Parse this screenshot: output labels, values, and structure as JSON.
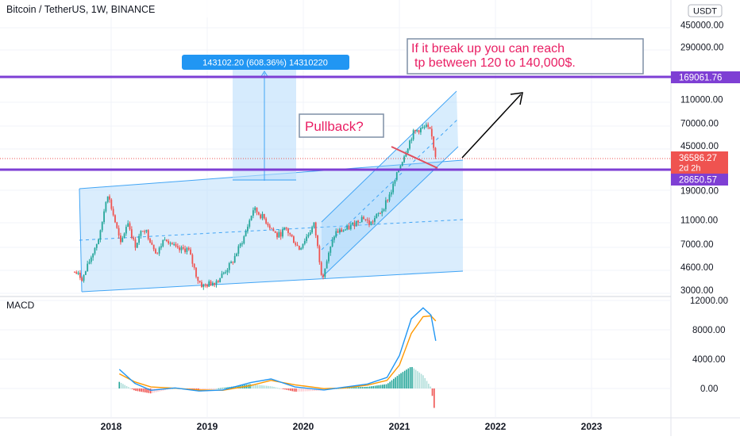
{
  "header": {
    "title": "Bitcoin / TetherUS, 1W, BINANCE",
    "currency_badge": "USDT"
  },
  "colors": {
    "up": "#26a69a",
    "down": "#ef5350",
    "channel_line": "#42a5f5",
    "channel_fill": "#bbdefb",
    "level_line": "#7e3fd4",
    "annotation_text": "#e91e63",
    "macd_line": "#2196f3",
    "signal_line": "#ff9800"
  },
  "annotations": {
    "measure_label": "143102.20 (608.36%) 14310220",
    "target_note_line1": "If it break up you can reach",
    "target_note_line2": "tp between 120 to 140,000$.",
    "pullback_note": "Pullback?"
  },
  "price_axis": {
    "labels": [
      "450000.00",
      "290000.00",
      "110000.00",
      "70000.00",
      "45000.00",
      "19000.00",
      "11000.00",
      "7000.00",
      "4600.00",
      "3000.00"
    ],
    "upper_level": "169061.76",
    "last_price": "36586.27",
    "countdown": "2d 2h",
    "lower_level": "28650.57"
  },
  "macd": {
    "title": "MACD",
    "axis_labels": [
      "12000.00",
      "8000.00",
      "4000.00",
      "0.00"
    ]
  },
  "time_axis": {
    "labels": [
      "2018",
      "2019",
      "2020",
      "2021",
      "2022",
      "2023"
    ]
  },
  "chart_data": [
    {
      "type": "candlestick",
      "title": "Bitcoin / TetherUS, 1W, BINANCE",
      "y_scale": "log",
      "ylim": [
        2500,
        600000
      ],
      "x_range": [
        "2017-08",
        "2023-12"
      ],
      "price_points": [
        [
          "2017-08-15",
          4200
        ],
        [
          "2017-09-15",
          3700
        ],
        [
          "2017-10-20",
          5800
        ],
        [
          "2017-11-20",
          8500
        ],
        [
          "2017-12-17",
          19000
        ],
        [
          "2018-01-15",
          11000
        ],
        [
          "2018-02-06",
          7000
        ],
        [
          "2018-03-05",
          11000
        ],
        [
          "2018-04-01",
          6800
        ],
        [
          "2018-05-05",
          9800
        ],
        [
          "2018-06-25",
          5900
        ],
        [
          "2018-07-25",
          8200
        ],
        [
          "2018-09-10",
          6300
        ],
        [
          "2018-10-20",
          6500
        ],
        [
          "2018-11-25",
          3700
        ],
        [
          "2018-12-15",
          3200
        ],
        [
          "2019-02-10",
          3600
        ],
        [
          "2019-04-05",
          5000
        ],
        [
          "2019-05-20",
          8000
        ],
        [
          "2019-06-26",
          13800
        ],
        [
          "2019-08-05",
          11500
        ],
        [
          "2019-09-25",
          8200
        ],
        [
          "2019-10-27",
          9500
        ],
        [
          "2019-12-17",
          6500
        ],
        [
          "2020-02-12",
          10300
        ],
        [
          "2020-03-13",
          3800
        ],
        [
          "2020-05-01",
          8800
        ],
        [
          "2020-06-15",
          9400
        ],
        [
          "2020-08-15",
          11900
        ],
        [
          "2020-09-10",
          10300
        ],
        [
          "2020-10-25",
          13300
        ],
        [
          "2020-11-30",
          19000
        ],
        [
          "2020-12-30",
          29000
        ],
        [
          "2021-01-15",
          36000
        ],
        [
          "2021-02-21",
          57000
        ],
        [
          "2021-03-13",
          61000
        ],
        [
          "2021-04-14",
          64000
        ],
        [
          "2021-05-01",
          57000
        ],
        [
          "2021-05-19",
          36586
        ]
      ],
      "horizontal_levels": [
        169061.76,
        28650.57
      ],
      "last_price": 36586.27,
      "measure": {
        "change": 143102.2,
        "percent": 608.36,
        "note": "143102.20 (608.36%) 14310220"
      }
    },
    {
      "type": "line",
      "title": "MACD",
      "ylim": [
        -3000,
        12000
      ],
      "macd_points": [
        [
          "2018-02-01",
          2600
        ],
        [
          "2018-04-01",
          700
        ],
        [
          "2018-06-01",
          -250
        ],
        [
          "2018-09-01",
          80
        ],
        [
          "2018-12-01",
          -350
        ],
        [
          "2019-03-01",
          -200
        ],
        [
          "2019-06-15",
          800
        ],
        [
          "2019-09-01",
          1300
        ],
        [
          "2019-12-01",
          200
        ],
        [
          "2020-03-20",
          -200
        ],
        [
          "2020-06-01",
          150
        ],
        [
          "2020-09-01",
          600
        ],
        [
          "2020-11-15",
          1500
        ],
        [
          "2021-01-01",
          4500
        ],
        [
          "2021-02-15",
          9500
        ],
        [
          "2021-04-01",
          11000
        ],
        [
          "2021-05-01",
          10000
        ],
        [
          "2021-05-19",
          6500
        ]
      ],
      "signal_points": [
        [
          "2018-02-01",
          2000
        ],
        [
          "2018-04-01",
          900
        ],
        [
          "2018-06-01",
          200
        ],
        [
          "2018-09-01",
          30
        ],
        [
          "2018-12-01",
          -200
        ],
        [
          "2019-03-01",
          -250
        ],
        [
          "2019-06-15",
          400
        ],
        [
          "2019-09-01",
          1100
        ],
        [
          "2019-12-01",
          500
        ],
        [
          "2020-03-20",
          -20
        ],
        [
          "2020-06-01",
          50
        ],
        [
          "2020-09-01",
          450
        ],
        [
          "2020-11-15",
          1100
        ],
        [
          "2021-01-01",
          3200
        ],
        [
          "2021-02-15",
          7500
        ],
        [
          "2021-04-01",
          9800
        ],
        [
          "2021-05-01",
          9900
        ],
        [
          "2021-05-19",
          9200
        ]
      ]
    }
  ]
}
